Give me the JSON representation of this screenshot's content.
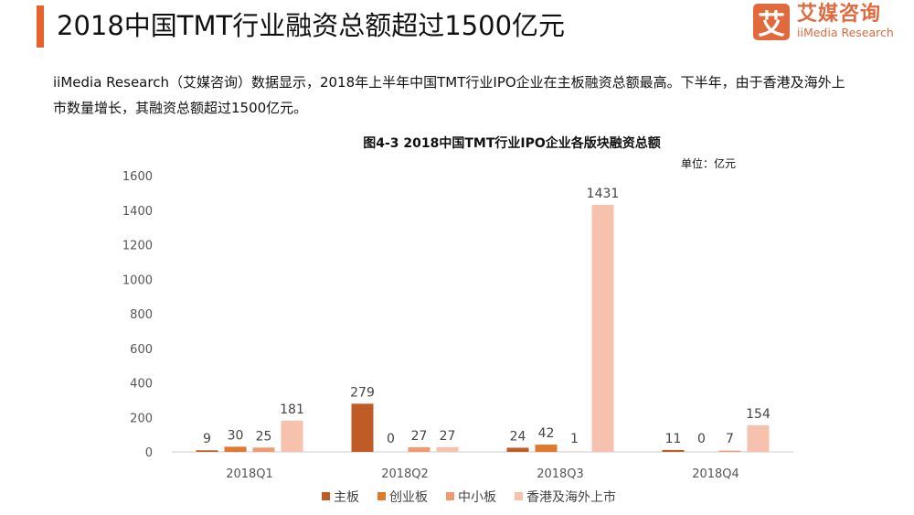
{
  "header": {
    "title": "2018中国TMT行业融资总额超过1500亿元"
  },
  "logo": {
    "mark": "艾",
    "cn": "艾媒咨询",
    "en": "iiMedia Research"
  },
  "description": "iiMedia Research（艾媒咨询）数据显示，2018年上半年中国TMT行业IPO企业在主板融资总额最高。下半年，由于香港及海外上市数量增长，其融资总额超过1500亿元。",
  "chart_data": {
    "type": "bar",
    "title": "图4-3 2018中国TMT行业IPO企业各版块融资总额",
    "unit": "单位：亿元",
    "categories": [
      "2018Q1",
      "2018Q2",
      "2018Q3",
      "2018Q4"
    ],
    "series": [
      {
        "name": "主板",
        "color": "#bf5b24",
        "values": [
          9,
          279,
          24,
          11
        ]
      },
      {
        "name": "创业板",
        "color": "#e0792f",
        "values": [
          30,
          0,
          42,
          0
        ]
      },
      {
        "name": "中小板",
        "color": "#f09a72",
        "values": [
          25,
          27,
          1,
          7
        ]
      },
      {
        "name": "香港及海外上市",
        "color": "#f6c2ae",
        "values": [
          181,
          27,
          1431,
          154
        ]
      }
    ],
    "ylim": [
      0,
      1600
    ],
    "yticks": [
      0,
      200,
      400,
      600,
      800,
      1000,
      1200,
      1400,
      1600
    ],
    "legend": "bottom",
    "grid": false
  }
}
